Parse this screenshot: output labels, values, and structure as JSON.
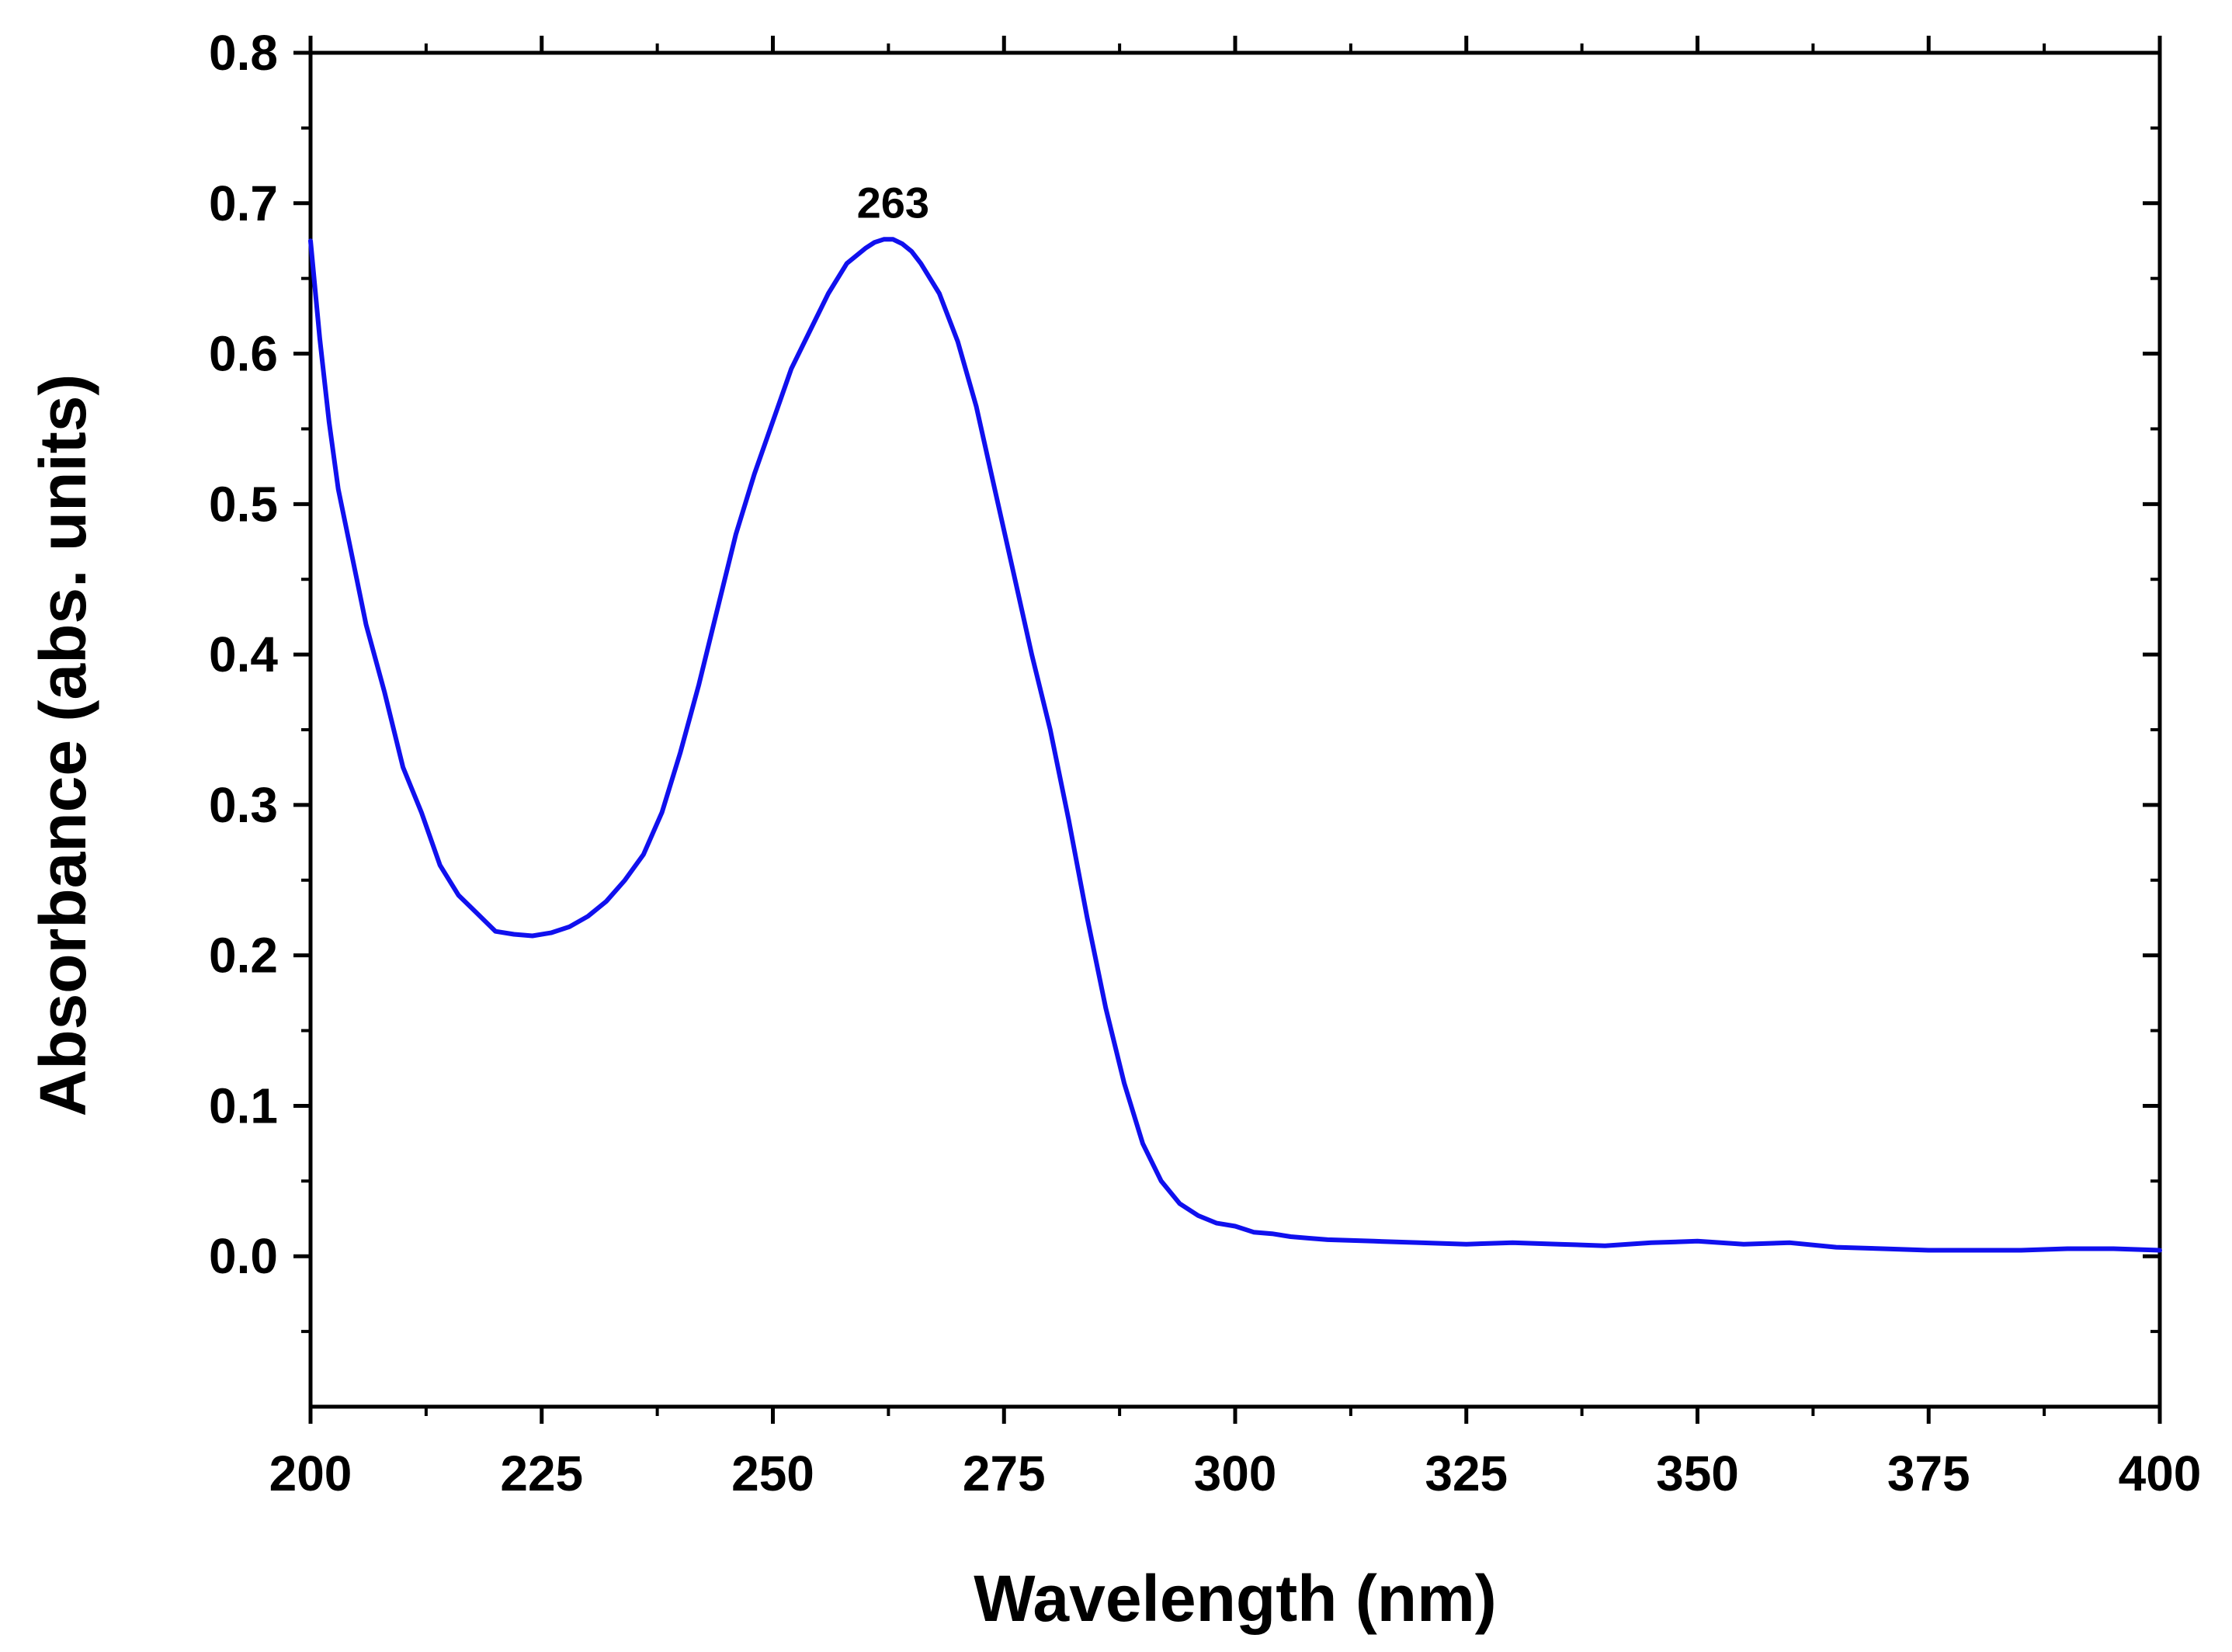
{
  "chart_data": {
    "type": "line",
    "title": "",
    "xlabel": "Wavelength (nm)",
    "ylabel": "Absorbance (abs. units)",
    "xlim": [
      200,
      400
    ],
    "ylim": [
      -0.1,
      0.8
    ],
    "grid": false,
    "legend": "none",
    "xticks": [
      200,
      225,
      250,
      275,
      300,
      325,
      350,
      375,
      400
    ],
    "xtick_labels": [
      "200",
      "225",
      "250",
      "275",
      "300",
      "325",
      "350",
      "375",
      "400"
    ],
    "yticks": [
      0.0,
      0.1,
      0.2,
      0.3,
      0.4,
      0.5,
      0.6,
      0.7,
      0.8
    ],
    "ytick_labels": [
      "0.0",
      "0.1",
      "0.2",
      "0.3",
      "0.4",
      "0.5",
      "0.6",
      "0.7",
      "0.8"
    ],
    "annotations": [
      {
        "text": "263",
        "x": 263,
        "y": 0.676
      }
    ],
    "series": [
      {
        "name": "Absorbance",
        "color": "#1010ee",
        "x": [
          200,
          201,
          202,
          203,
          205,
          206,
          208,
          210,
          212,
          214,
          216,
          218,
          220,
          222,
          224,
          226,
          228,
          230,
          232,
          234,
          236,
          238,
          240,
          242,
          244,
          246,
          248,
          250,
          252,
          254,
          256,
          258,
          260,
          261,
          262,
          263,
          264,
          265,
          266,
          268,
          270,
          272,
          274,
          276,
          278,
          280,
          282,
          284,
          286,
          288,
          290,
          292,
          294,
          296,
          298,
          300,
          302,
          304,
          306,
          308,
          310,
          315,
          320,
          325,
          330,
          335,
          340,
          345,
          350,
          355,
          360,
          365,
          370,
          375,
          380,
          385,
          390,
          395,
          400
        ],
        "y": [
          0.675,
          0.61,
          0.555,
          0.51,
          0.45,
          0.42,
          0.375,
          0.325,
          0.295,
          0.26,
          0.24,
          0.228,
          0.216,
          0.214,
          0.213,
          0.215,
          0.219,
          0.226,
          0.236,
          0.25,
          0.267,
          0.295,
          0.335,
          0.38,
          0.43,
          0.48,
          0.52,
          0.555,
          0.59,
          0.615,
          0.64,
          0.66,
          0.67,
          0.674,
          0.676,
          0.676,
          0.673,
          0.668,
          0.66,
          0.64,
          0.608,
          0.565,
          0.51,
          0.455,
          0.4,
          0.35,
          0.29,
          0.225,
          0.165,
          0.115,
          0.075,
          0.05,
          0.035,
          0.027,
          0.022,
          0.02,
          0.016,
          0.015,
          0.013,
          0.012,
          0.011,
          0.01,
          0.009,
          0.008,
          0.009,
          0.008,
          0.007,
          0.009,
          0.01,
          0.008,
          0.009,
          0.006,
          0.005,
          0.004,
          0.004,
          0.004,
          0.005,
          0.005,
          0.004
        ]
      }
    ]
  }
}
